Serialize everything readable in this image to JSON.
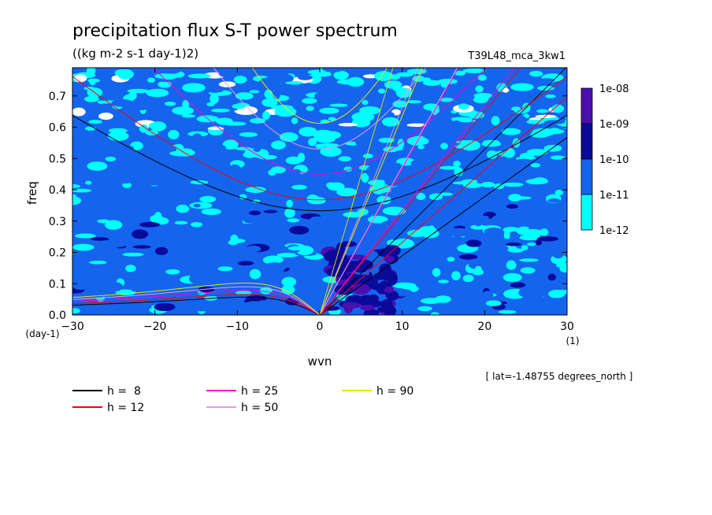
{
  "chart_data": {
    "type": "heatmap",
    "title": "precipitation flux S-T power spectrum",
    "subtitle": "((kg m-2 s-1 day-1)2)",
    "run_label": "T39L48_mca_3kw1",
    "xlabel": "wvn",
    "x_unit": "(1)",
    "ylabel": "freq",
    "y_unit": "(day-1)",
    "xlim": [
      -30,
      30
    ],
    "ylim": [
      0,
      0.79
    ],
    "x_ticks": [
      -30,
      -20,
      -10,
      0,
      10,
      20,
      30
    ],
    "y_ticks": [
      0.0,
      0.1,
      0.2,
      0.3,
      0.4,
      0.5,
      0.6,
      0.7
    ],
    "x_tick_labels": [
      "−30",
      "−20",
      "−10",
      "0",
      "10",
      "20",
      "30"
    ],
    "y_tick_labels": [
      "0.0",
      "0.1",
      "0.2",
      "0.3",
      "0.4",
      "0.5",
      "0.6",
      "0.7"
    ],
    "colorbar": {
      "labels": [
        "1e-08",
        "1e-09",
        "1e-10",
        "1e-11",
        "1e-12"
      ],
      "colors": [
        "#4b0fb0",
        "#0a0a9a",
        "#1464ee",
        "#00ffff"
      ]
    },
    "shading_levels": [
      {
        "range": "< 1e-12",
        "color": "#ffffff"
      },
      {
        "range": "1e-12 to 1e-11",
        "color": "#00ffff"
      },
      {
        "range": "1e-11 to 1e-10",
        "color": "#1464ee"
      },
      {
        "range": "1e-10 to 1e-09",
        "color": "#0a0a9a"
      },
      {
        "range": "1e-09 to 1e-08",
        "color": "#4b0fb0"
      }
    ],
    "annotation": "[ lat=-1.48755 degrees_north ]",
    "legend": [
      {
        "label": "h =  8",
        "color": "#000000"
      },
      {
        "label": "h = 12",
        "color": "#ff0000"
      },
      {
        "label": "h = 25",
        "color": "#ff00cc"
      },
      {
        "label": "h = 50",
        "color": "#e79ae7"
      },
      {
        "label": "h = 90",
        "color": "#e6e600"
      }
    ],
    "dispersion_curves": [
      {
        "h": 8,
        "color": "#000000",
        "kelvin_slope": 0.0189,
        "inertia_gravity_min": 0.333,
        "rossby_peak": 0.058
      },
      {
        "h": 12,
        "color": "#ff0000",
        "kelvin_slope": 0.0232,
        "inertia_gravity_min": 0.368,
        "rossby_peak": 0.067
      },
      {
        "h": 25,
        "color": "#ff00cc",
        "kelvin_slope": 0.0335,
        "inertia_gravity_min": 0.45,
        "rossby_peak": 0.08
      },
      {
        "h": 50,
        "color": "#e79ae7",
        "kelvin_slope": 0.0474,
        "inertia_gravity_min": 0.53,
        "rossby_peak": 0.092
      },
      {
        "h": 90,
        "color": "#e6e600",
        "kelvin_slope": 0.0636,
        "inertia_gravity_min": 0.612,
        "rossby_peak": 0.104
      }
    ]
  }
}
